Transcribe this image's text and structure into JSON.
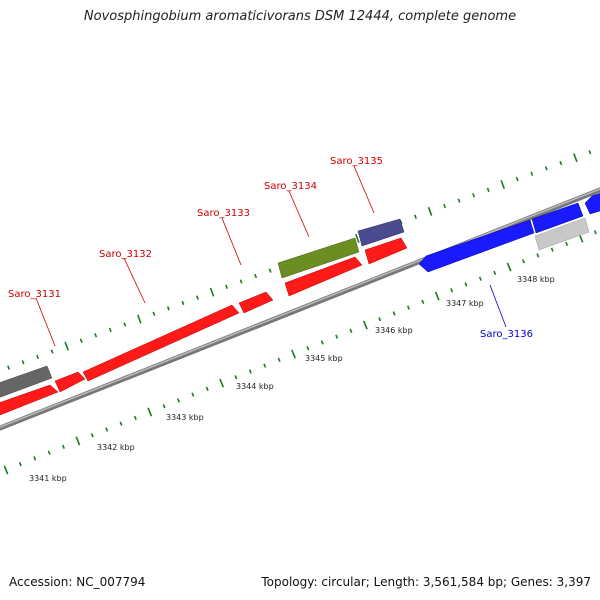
{
  "title": "Novosphingobium aromaticivorans DSM 12444, complete genome",
  "accession": "Accession: NC_007794",
  "topology": "Topology: circular; Length: 3,561,584 bp; Genes: 3,397",
  "colors": {
    "forward_gene": "#ff1a1a",
    "reverse_gene": "#1a1aff",
    "gray_gene": "#666666",
    "light_gray_gene": "#c8c8c8",
    "olive_gene": "#6b8e23",
    "purple_gene": "#4b4b8f",
    "backbone": "#888888",
    "tick": "#1e7a1e",
    "forward_label": "#cc0000",
    "reverse_label": "#0000cc"
  },
  "gene_labels": [
    {
      "text": "Saro_3131",
      "strand": "forward"
    },
    {
      "text": "Saro_3132",
      "strand": "forward"
    },
    {
      "text": "Saro_3133",
      "strand": "forward"
    },
    {
      "text": "Saro_3134",
      "strand": "forward"
    },
    {
      "text": "Saro_3135",
      "strand": "forward"
    },
    {
      "text": "Saro_3136",
      "strand": "reverse"
    }
  ],
  "kbp_labels": [
    "3341 kbp",
    "3342 kbp",
    "3343 kbp",
    "3344 kbp",
    "3345 kbp",
    "3346 kbp",
    "3347 kbp",
    "3348 kbp"
  ]
}
